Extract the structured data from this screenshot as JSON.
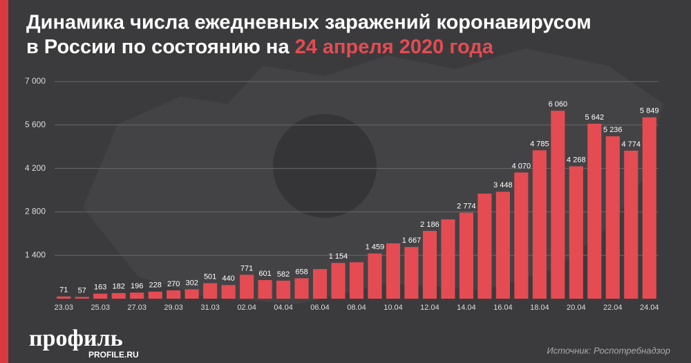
{
  "chart_data": {
    "type": "bar",
    "title": {
      "line1": "Динамика числа ежедневных заражений коронавирусом",
      "line2": "в России по состоянию на",
      "highlight": "24 апреля 2020 года"
    },
    "categories": [
      "23.03",
      null,
      "25.03",
      null,
      "27.03",
      null,
      "29.03",
      null,
      "31.03",
      null,
      "02.04",
      null,
      "04.04",
      null,
      "06.04",
      null,
      "08.04",
      null,
      "10.04",
      null,
      "12.04",
      null,
      "14.04",
      null,
      "16.04",
      null,
      "18.04",
      null,
      "20.04",
      null,
      "22.04",
      null,
      "24.04"
    ],
    "values": [
      71,
      57,
      163,
      182,
      196,
      228,
      270,
      302,
      501,
      440,
      771,
      601,
      582,
      658,
      954,
      1154,
      1175,
      1459,
      1786,
      1667,
      2186,
      2558,
      2774,
      3388,
      3448,
      4070,
      4785,
      6060,
      4268,
      5642,
      5236,
      4774,
      5849
    ],
    "value_labels": [
      "71",
      "57",
      "163",
      "182",
      "196",
      "228",
      "270",
      "302",
      "501",
      "440",
      "771",
      "601",
      "582",
      "658",
      null,
      "1 154",
      null,
      "1 459",
      null,
      "1 667",
      "2 186",
      null,
      "2 774",
      null,
      "3 448",
      "4 070",
      "4 785",
      "6 060",
      "4 268",
      "5 642",
      "5 236",
      "4 774",
      "5 849"
    ],
    "color": "#e54b52",
    "ylim": [
      0,
      7000
    ],
    "yticks": [
      {
        "value": 1400,
        "label": "1 400"
      },
      {
        "value": 2800,
        "label": "2 800"
      },
      {
        "value": 4200,
        "label": "4 200"
      },
      {
        "value": 5600,
        "label": "5 600"
      },
      {
        "value": 7000,
        "label": "7 000"
      }
    ],
    "grid": true
  },
  "logo": "профиль",
  "logo_url": "PROFILE.RU",
  "source": "Источник: Роспотребнадзор"
}
